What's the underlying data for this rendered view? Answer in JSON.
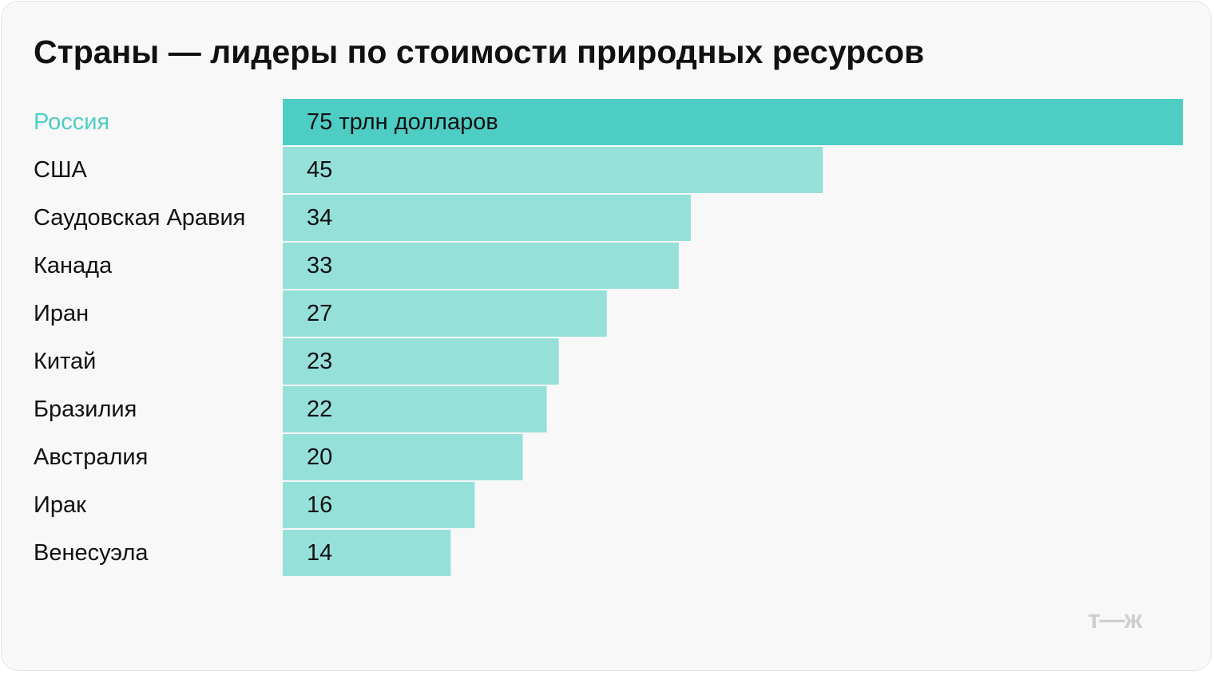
{
  "title": "Страны — лидеры по стоимости природных ресурсов",
  "logo_text": "т—ж",
  "colors": {
    "highlight_bar": "#4ecdc4",
    "bar": "#95e1da",
    "highlight_label": "#4ecdc4",
    "label": "#111111",
    "value_text": "#111111",
    "background": "#f8f8f8"
  },
  "chart_data": {
    "type": "bar",
    "orientation": "horizontal",
    "title": "Страны — лидеры по стоимости природных ресурсов",
    "categories": [
      "Россия",
      "США",
      "Саудовская Аравия",
      "Канада",
      "Иран",
      "Китай",
      "Бразилия",
      "Австралия",
      "Ирак",
      "Венесуэла"
    ],
    "values": [
      75,
      45,
      34,
      33,
      27,
      23,
      22,
      20,
      16,
      14
    ],
    "value_labels": [
      "75 трлн долларов",
      "45",
      "34",
      "33",
      "27",
      "23",
      "22",
      "20",
      "16",
      "14"
    ],
    "highlighted_category": "Россия",
    "xlim": [
      0,
      75
    ],
    "grid": false,
    "legend": "none"
  }
}
